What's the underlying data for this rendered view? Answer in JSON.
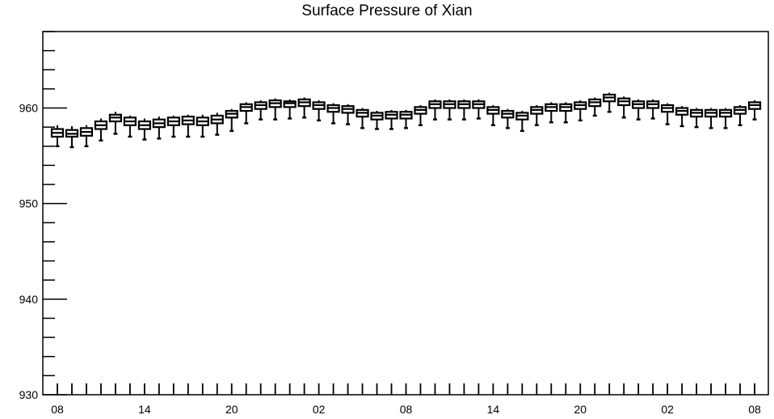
{
  "chart_data": {
    "type": "boxplot",
    "title": "Surface Pressure of Xian",
    "xlabel": "",
    "ylabel": "",
    "ylim": [
      930,
      968
    ],
    "y_ticks": [
      930,
      940,
      950,
      960
    ],
    "x_tick_labels": [
      "08",
      "14",
      "20",
      "02",
      "08",
      "14",
      "20",
      "02",
      "08"
    ],
    "x_label_step": 6,
    "grid": false,
    "legend": "none",
    "series": [
      {
        "median": [
          957.4,
          957.3,
          957.5,
          958.2,
          959.0,
          958.6,
          958.2,
          958.4,
          958.6,
          958.7,
          958.6,
          958.8,
          959.4,
          960.1,
          960.3,
          960.5,
          960.5,
          960.6,
          960.3,
          960.0,
          959.9,
          959.5,
          959.2,
          959.3,
          959.3,
          959.8,
          960.4,
          960.4,
          960.4,
          960.4,
          959.8,
          959.4,
          959.2,
          959.8,
          960.1,
          960.1,
          960.3,
          960.6,
          961.1,
          960.7,
          960.4,
          960.4,
          960.0,
          959.7,
          959.5,
          959.5,
          959.5,
          959.8,
          960.3
        ],
        "q1": [
          957.0,
          957.0,
          957.1,
          957.8,
          958.6,
          958.2,
          957.8,
          958.0,
          958.2,
          958.3,
          958.2,
          958.4,
          959.0,
          959.7,
          959.9,
          960.1,
          960.1,
          960.2,
          959.9,
          959.6,
          959.5,
          959.1,
          958.8,
          958.9,
          958.9,
          959.4,
          960.0,
          960.0,
          960.0,
          960.0,
          959.4,
          959.0,
          958.8,
          959.4,
          959.7,
          959.7,
          959.9,
          960.2,
          960.7,
          960.3,
          960.0,
          960.0,
          959.6,
          959.3,
          959.1,
          959.1,
          959.1,
          959.4,
          959.9
        ],
        "q3": [
          957.8,
          957.7,
          957.9,
          958.6,
          959.3,
          959.0,
          958.6,
          958.8,
          959.0,
          959.1,
          959.0,
          959.2,
          959.7,
          960.4,
          960.6,
          960.8,
          960.7,
          960.9,
          960.6,
          960.3,
          960.2,
          959.8,
          959.5,
          959.6,
          959.6,
          960.1,
          960.7,
          960.7,
          960.7,
          960.7,
          960.1,
          959.7,
          959.5,
          960.1,
          960.4,
          960.4,
          960.6,
          960.9,
          961.4,
          961.0,
          960.7,
          960.7,
          960.3,
          960.0,
          959.8,
          959.8,
          959.8,
          960.1,
          960.6
        ],
        "whisker_low": [
          956.0,
          955.9,
          956.0,
          956.6,
          957.3,
          957.0,
          956.7,
          956.8,
          957.0,
          957.0,
          957.0,
          957.2,
          957.6,
          958.4,
          958.8,
          958.8,
          958.9,
          959.0,
          958.7,
          958.4,
          958.3,
          957.9,
          957.8,
          957.8,
          957.9,
          958.2,
          958.8,
          958.8,
          958.8,
          958.9,
          958.2,
          957.9,
          957.6,
          958.2,
          958.5,
          958.5,
          958.7,
          959.2,
          959.6,
          959.0,
          958.8,
          958.9,
          958.3,
          958.1,
          958.0,
          957.9,
          957.9,
          958.2,
          958.8
        ],
        "whisker_high": [
          958.2,
          958.1,
          958.2,
          958.9,
          959.6,
          959.2,
          958.9,
          959.1,
          959.2,
          959.3,
          959.3,
          959.5,
          959.9,
          960.6,
          960.8,
          961.0,
          960.9,
          961.1,
          960.8,
          960.5,
          960.4,
          960.0,
          959.7,
          959.8,
          959.8,
          960.3,
          960.9,
          960.9,
          960.9,
          960.9,
          960.3,
          959.9,
          959.7,
          960.3,
          960.6,
          960.6,
          960.8,
          961.1,
          961.6,
          961.2,
          960.9,
          960.9,
          960.5,
          960.2,
          960.0,
          960.0,
          960.0,
          960.3,
          960.8
        ]
      }
    ]
  }
}
